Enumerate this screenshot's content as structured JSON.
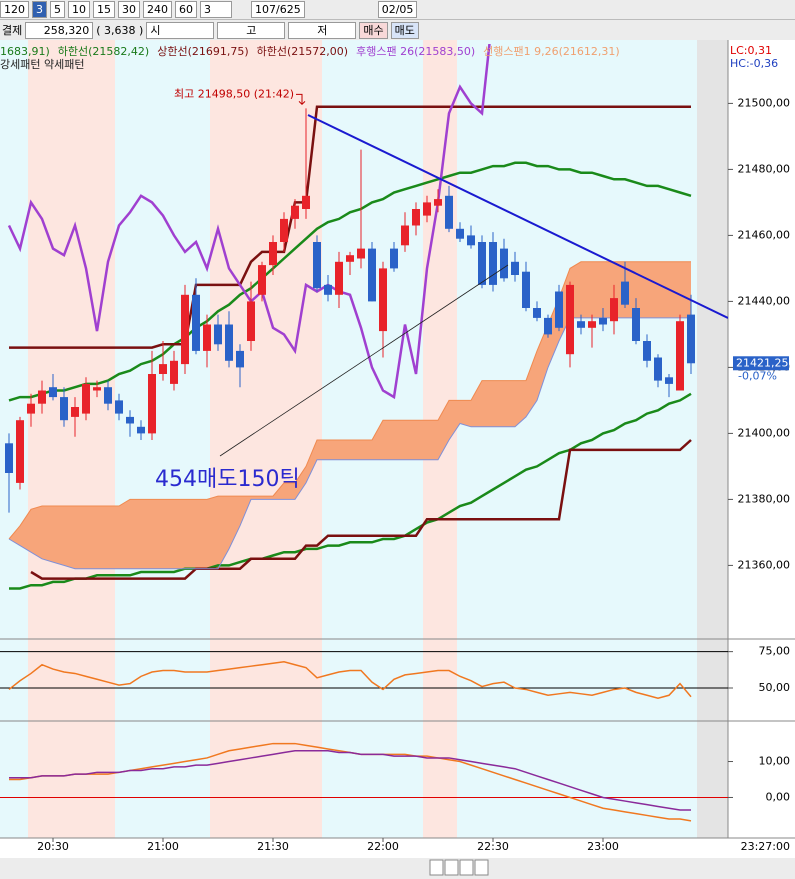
{
  "toolbar": {
    "periods": [
      "120",
      "3",
      "5",
      "10",
      "15",
      "30",
      "240",
      "60"
    ],
    "count": "3",
    "pages": "107/625",
    "date": "02/05"
  },
  "quote": {
    "label": "결제",
    "price": "258,320",
    "change": "( 3,638 )",
    "open_label": "시",
    "high_label": "고",
    "low_label": "저",
    "buy": "매수",
    "sell": "매도"
  },
  "chart_data": [
    {
      "type": "candlestick",
      "legend_texts": [
        "1683,91)",
        "하한선(21582,42)",
        "상한선(21691,75)",
        "하한선(21572,00)",
        "후행스팬 26(21583,50)",
        "선행스팬1 9,26(21612,31)"
      ],
      "legend_colors": [
        "#1a7a1a",
        "#1a7a1a",
        "#7a1010",
        "#7a1010",
        "#a040d0",
        "#f0a070"
      ],
      "subtitle": "강세패턴  약세패턴",
      "lc": "LC:0,31",
      "hc": "HC:-0,36",
      "categories": [
        null,
        null,
        null,
        null,
        "20:30",
        null,
        null,
        null,
        null,
        null,
        null,
        null,
        null,
        null,
        "21:00",
        null,
        null,
        null,
        null,
        null,
        null,
        null,
        null,
        null,
        "21:30",
        null,
        null,
        null,
        null,
        null,
        null,
        null,
        null,
        null,
        "22:00",
        null,
        null,
        null,
        null,
        null,
        null,
        null,
        null,
        null,
        "22:30",
        null,
        null,
        null,
        null,
        null,
        null,
        null,
        null,
        null,
        "23:00",
        null,
        null,
        null,
        null,
        null,
        null,
        null,
        null
      ],
      "x_end_label": "23:27:00",
      "open": [
        21397,
        21385,
        21406,
        21409,
        21414,
        21411,
        21405,
        21406,
        21413,
        21414,
        21410,
        21405,
        21402,
        21400,
        21418,
        21415,
        21421,
        21442,
        21425,
        21433,
        21433,
        21425,
        21428,
        21442,
        21451,
        21458,
        21465,
        21468,
        21458,
        21445,
        21442,
        21452,
        21453,
        21456,
        21431,
        21456,
        21457,
        21463,
        21466,
        21469,
        21472,
        21462,
        21460,
        21458,
        21458,
        21456,
        21452,
        21449,
        21438,
        21435,
        21443,
        21424,
        21434,
        21432,
        21435,
        21434,
        21446,
        21438,
        21428,
        21423,
        21417,
        21413,
        21436
      ],
      "high": [
        21400,
        21405,
        21412,
        21416,
        21418,
        21414,
        21411,
        21417,
        21416,
        21416,
        21412,
        21407,
        21404,
        21425,
        21428,
        21425,
        21445,
        21447,
        21436,
        21436,
        21437,
        21427,
        21446,
        21452,
        21460,
        21467,
        21471,
        21498.5,
        21460,
        21448,
        21455,
        21455,
        21486,
        21458,
        21452,
        21458,
        21467,
        21470,
        21472,
        21474,
        21475,
        21464,
        21463,
        21460,
        21461,
        21459,
        21455,
        21452,
        21440,
        21436,
        21445,
        21446,
        21436,
        21436,
        21438,
        21445,
        21452,
        21441,
        21430,
        21424,
        21418,
        21436,
        21442
      ],
      "low": [
        21376,
        21383,
        21402,
        21406,
        21410,
        21402,
        21399,
        21404,
        21411,
        21407,
        21404,
        21399,
        21398,
        21398,
        21416,
        21413,
        21418,
        21424,
        21420,
        21425,
        21420,
        21414,
        21425,
        21440,
        21448,
        21455,
        21462,
        21465,
        21443,
        21440,
        21438,
        21448,
        21450,
        21440,
        21423,
        21449,
        21455,
        21460,
        21464,
        21467,
        21461,
        21458,
        21456,
        21444,
        21443,
        21446,
        21446,
        21437,
        21434,
        21429,
        21431,
        21420,
        21430,
        21426,
        21431,
        21430,
        21438,
        21427,
        21420,
        21414,
        21411,
        21413,
        21418
      ],
      "close": [
        21388,
        21404,
        21409,
        21413,
        21411,
        21404,
        21408,
        21415,
        21414,
        21409,
        21406,
        21403,
        21400,
        21418,
        21421,
        21422,
        21442,
        21425,
        21433,
        21427,
        21422,
        21420,
        21440,
        21451,
        21458,
        21465,
        21469,
        21472,
        21444,
        21442,
        21452,
        21454,
        21456,
        21440,
        21450,
        21450,
        21463,
        21468,
        21470,
        21471,
        21462,
        21459,
        21457,
        21445,
        21445,
        21447,
        21448,
        21438,
        21435,
        21430,
        21432,
        21445,
        21432,
        21434,
        21433,
        21441,
        21439,
        21428,
        21422,
        21416,
        21415,
        21434,
        21421.25
      ],
      "up_color": "#e8232a",
      "down_color": "#2a62c8",
      "cloud_color": "#f7a57a",
      "series": [
        {
          "color": "#1a8a1a",
          "values": [
            21410,
            21411,
            21411,
            21412,
            21413,
            21413,
            21414,
            21415,
            21415,
            21416,
            21418,
            21419,
            21421,
            21422,
            21424,
            21427,
            21429,
            21432,
            21434,
            21437,
            21439,
            21442,
            21444,
            21447,
            21450,
            21453,
            21456,
            21459,
            21462,
            21464,
            21465,
            21467,
            21468,
            21470,
            21471,
            21473,
            21474,
            21475,
            21476,
            21477,
            21478,
            21479,
            21479,
            21480,
            21481,
            21481,
            21482,
            21482,
            21481,
            21481,
            21480,
            21480,
            21479,
            21479,
            21478,
            21477,
            21477,
            21476,
            21475,
            21475,
            21474,
            21473,
            21472
          ]
        },
        {
          "color": "#1a8a1a",
          "values": [
            21353,
            21353,
            21354,
            21354,
            21355,
            21355,
            21356,
            21356,
            21357,
            21357,
            21357,
            21357,
            21358,
            21358,
            21358,
            21358,
            21359,
            21359,
            21359,
            21360,
            21360,
            21361,
            21362,
            21362,
            21363,
            21364,
            21364,
            21365,
            21365,
            21366,
            21366,
            21367,
            21367,
            21367,
            21368,
            21368,
            21369,
            21371,
            21373,
            21374,
            21376,
            21378,
            21379,
            21381,
            21383,
            21385,
            21387,
            21389,
            21390,
            21392,
            21394,
            21395,
            21397,
            21398,
            21400,
            21401,
            21403,
            21404,
            21406,
            21407,
            21409,
            21410,
            21412
          ]
        },
        {
          "color": "#7a1010",
          "values": [
            21426,
            21426,
            21426,
            21426,
            21426,
            21426,
            21426,
            21426,
            21426,
            21426,
            21426,
            21426,
            21426,
            21426,
            21427,
            21427,
            21427,
            21445,
            21445,
            21445,
            21445,
            21445,
            21452,
            21455,
            21455,
            21455,
            21470,
            21470,
            21499,
            21499,
            21499,
            21499,
            21499,
            21499,
            21499,
            21499,
            21499,
            21499,
            21499,
            21499,
            21499,
            21499,
            21499,
            21499,
            21499,
            21499,
            21499,
            21499,
            21499,
            21499,
            21499,
            21499,
            21499,
            21499,
            21499,
            21499,
            21499,
            21499,
            21499,
            21499,
            21499,
            21499,
            21499
          ]
        },
        {
          "color": "#7a1010",
          "values": [
            null,
            null,
            21358,
            21356,
            21356,
            21356,
            21356,
            21356,
            21356,
            21356,
            21356,
            21356,
            21356,
            21356,
            21356,
            21356,
            21356,
            21359,
            21359,
            21359,
            21359,
            21359,
            21362,
            21362,
            21362,
            21362,
            21362,
            21366,
            21366,
            21369,
            21369,
            21369,
            21369,
            21369,
            21369,
            21369,
            21369,
            21369,
            21374,
            21374,
            21374,
            21374,
            21374,
            21374,
            21374,
            21374,
            21374,
            21374,
            21374,
            21374,
            21374,
            21395,
            21395,
            21395,
            21395,
            21395,
            21395,
            21395,
            21395,
            21395,
            21395,
            21395,
            21398
          ]
        },
        {
          "color": "#a040d0",
          "values": [
            21463,
            21456,
            21470,
            21465,
            21456,
            21454,
            21463,
            21450,
            21431,
            21452,
            21463,
            21467,
            21472,
            21470,
            21466,
            21460,
            21455,
            21458,
            21450,
            21462,
            21450,
            21445,
            21440,
            21443,
            21432,
            21430,
            21425,
            21445,
            21443,
            21445,
            21443,
            21442,
            21432,
            21420,
            21413,
            21411,
            21433,
            21418,
            21450,
            21470,
            21497,
            21505,
            21500,
            21497,
            21528,
            null,
            null,
            null,
            null,
            null,
            null,
            null,
            null,
            null,
            null,
            null,
            null,
            null,
            null,
            null,
            null,
            null,
            null
          ]
        },
        {
          "color": "#f08a50",
          "values": [
            21368,
            21372,
            21377,
            21378,
            21378,
            21378,
            21378,
            21378,
            21378,
            21378,
            21378,
            21380,
            21380,
            21380,
            21380,
            21380,
            21380,
            21380,
            21380,
            21381,
            21381,
            21381,
            21381,
            21381,
            21381,
            21385,
            21385,
            21390,
            21398,
            21398,
            21398,
            21398,
            21398,
            21398,
            21404,
            21404,
            21404,
            21404,
            21404,
            21404,
            21410,
            21410,
            21410,
            21416,
            21416,
            21416,
            21416,
            21416,
            21425,
            21433,
            21441,
            21450,
            21452,
            21452,
            21452,
            21452,
            21452,
            21452,
            21452,
            21452,
            21452,
            21452,
            21452
          ]
        },
        {
          "color": "#7f90d8",
          "values": [
            21368,
            21366,
            21364,
            21362,
            21361,
            21360,
            21359,
            21359,
            21359,
            21359,
            21359,
            21359,
            21359,
            21359,
            21359,
            21359,
            21359,
            21359,
            21359,
            21359,
            21365,
            21372,
            21380,
            21380,
            21380,
            21380,
            21380,
            21385,
            21392,
            21392,
            21392,
            21392,
            21392,
            21392,
            21392,
            21392,
            21392,
            21392,
            21392,
            21392,
            21398,
            21403,
            21402,
            21402,
            21402,
            21402,
            21402,
            21405,
            21410,
            21420,
            21428,
            21435,
            21435,
            21435,
            21435,
            21435,
            21435,
            21435,
            21435,
            21435,
            21435,
            21435,
            21435
          ]
        }
      ],
      "ylim": [
        21338,
        21518
      ],
      "yticks": [
        {
          "value": 21360,
          "label": "21360,00"
        },
        {
          "value": 21380,
          "label": "21380,00"
        },
        {
          "value": 21400,
          "label": "21400,00"
        },
        {
          "value": 21420,
          "label": "21420,00"
        },
        {
          "value": 21440,
          "label": "21440,00"
        },
        {
          "value": 21460,
          "label": "21460,00"
        },
        {
          "value": 21480,
          "label": "21480,00"
        },
        {
          "value": 21500,
          "label": "21500,00"
        }
      ],
      "last_price_label": "21421,25",
      "change_label": "-0,07%",
      "annotations": [
        "최고 21498,50 (21:42)",
        "454매도150틱"
      ]
    },
    {
      "type": "line",
      "series": [
        {
          "color": "#f07820",
          "values": [
            49,
            55,
            60,
            66,
            63,
            61,
            60,
            58,
            56,
            54,
            52,
            53,
            58,
            61,
            62,
            62,
            61,
            61,
            61,
            62,
            63,
            64,
            65,
            66,
            67,
            68,
            66,
            64,
            57,
            59,
            61,
            62,
            62,
            54,
            49,
            56,
            59,
            60,
            61,
            62,
            62,
            58,
            55,
            51,
            53,
            54,
            50,
            49,
            47,
            45,
            46,
            47,
            46,
            45,
            47,
            49,
            50,
            47,
            45,
            43,
            45,
            53,
            44
          ]
        }
      ],
      "ylim": [
        28,
        83
      ],
      "yticks": [
        {
          "value": 75,
          "label": "75,00"
        },
        {
          "value": 50,
          "label": "50,00"
        }
      ],
      "grid": true,
      "grid_color": "#000000"
    },
    {
      "type": "line",
      "series": [
        {
          "color": "#f07820",
          "values": [
            5,
            5,
            5.5,
            6,
            6,
            6,
            6.5,
            6.5,
            6.5,
            6.5,
            7,
            7.5,
            8,
            8.5,
            9,
            9.5,
            10,
            10.5,
            11,
            12,
            13,
            13.5,
            14,
            14.5,
            15,
            15,
            15,
            14.5,
            14,
            13.5,
            13,
            12.5,
            12,
            12,
            12,
            12,
            12,
            11.5,
            11.5,
            11,
            10.5,
            10,
            9,
            8,
            7,
            6,
            5,
            4,
            3,
            2,
            1,
            0,
            -1,
            -2,
            -3,
            -3.5,
            -4,
            -4.5,
            -5,
            -5.5,
            -6,
            -6,
            -6.5
          ]
        },
        {
          "color": "#8a2a9a",
          "values": [
            5.5,
            5.5,
            5.5,
            6,
            6,
            6,
            6.5,
            6.5,
            7,
            7,
            7,
            7.5,
            7.5,
            8,
            8,
            8.5,
            8.5,
            9,
            9,
            9.5,
            10,
            10.5,
            11,
            11.5,
            12,
            12.5,
            13,
            13,
            13,
            13,
            12.5,
            12.5,
            12,
            12,
            12,
            11.5,
            11.5,
            11.5,
            11,
            11,
            11,
            10.5,
            10,
            9.5,
            9,
            8.5,
            8,
            7,
            6,
            5,
            4,
            3,
            2,
            1,
            0,
            -0.5,
            -1,
            -1.5,
            -2,
            -2.5,
            -3,
            -3.5,
            -3.5
          ]
        }
      ],
      "ylim": [
        -11,
        21
      ],
      "yticks": [
        {
          "value": 10,
          "label": "10,00"
        },
        {
          "value": 0,
          "label": "0,00"
        }
      ],
      "grid": false,
      "zero_line_color": "#e00000"
    }
  ]
}
